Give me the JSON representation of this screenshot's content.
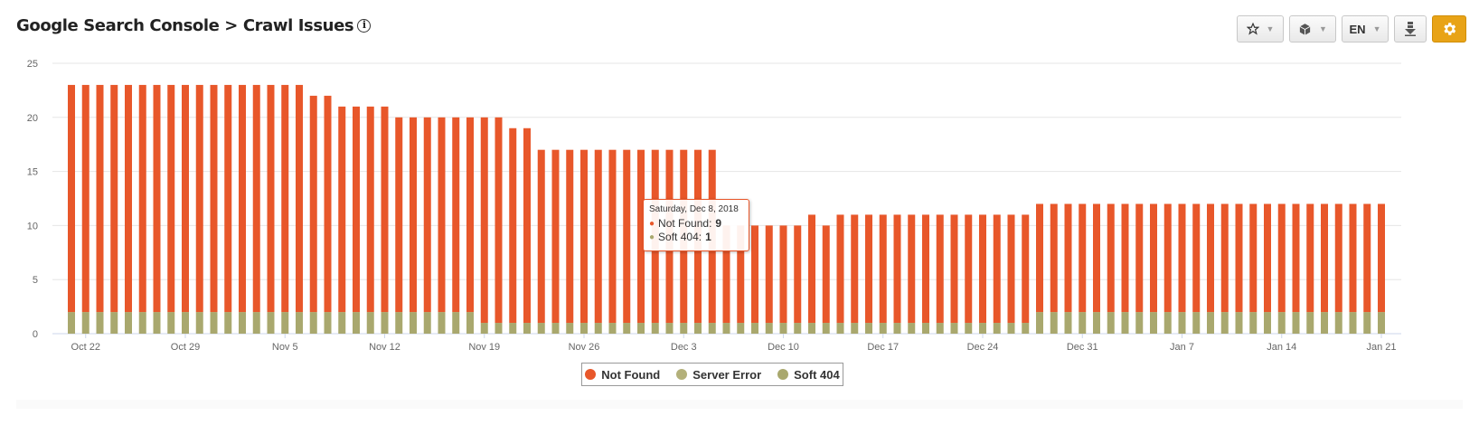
{
  "header": {
    "title": "Google Search Console > Crawl Issues",
    "info_icon": "i"
  },
  "toolbar": {
    "star_icon": "star-icon",
    "cube_icon": "cube-icon",
    "language": "EN",
    "download_icon": "download-icon",
    "settings_icon": "gear-icon",
    "caret": "▼"
  },
  "colors": {
    "not_found": "#e8572a",
    "server_error": "#b3b07a",
    "soft_404": "#a9a86e",
    "settings_accent": "#e8a317"
  },
  "tooltip": {
    "date": "Saturday, Dec 8, 2018",
    "not_found_label": "Not Found:",
    "not_found_value": "9",
    "soft404_label": "Soft 404:",
    "soft404_value": "1"
  },
  "chart_data": {
    "type": "bar",
    "stacked": true,
    "ylim": [
      0,
      25
    ],
    "yticks": [
      "0",
      "5",
      "10",
      "15",
      "20",
      "25"
    ],
    "xtick_labels": [
      "Oct 22",
      "Oct 29",
      "Nov 5",
      "Nov 12",
      "Nov 19",
      "Nov 26",
      "Dec 3",
      "Dec 10",
      "Dec 17",
      "Dec 24",
      "Dec 31",
      "Jan 7",
      "Jan 14",
      "Jan 21"
    ],
    "legend_position": "bottom-center",
    "grid": true,
    "series": [
      {
        "name": "Not Found",
        "values": [
          21,
          21,
          21,
          21,
          21,
          21,
          21,
          21,
          21,
          21,
          21,
          21,
          21,
          21,
          21,
          21,
          21,
          20,
          20,
          19,
          19,
          19,
          19,
          18,
          18,
          18,
          18,
          18,
          18,
          19,
          19,
          18,
          18,
          16,
          16,
          16,
          16,
          16,
          16,
          16,
          16,
          16,
          16,
          16,
          16,
          16,
          9,
          9,
          9,
          9,
          9,
          9,
          10,
          9,
          10,
          10,
          10,
          10,
          10,
          10,
          10,
          10,
          10,
          10,
          10,
          10,
          10,
          10,
          10,
          10,
          10,
          10,
          10,
          10,
          10,
          10,
          10,
          10,
          10,
          10,
          10,
          10,
          10,
          10,
          10,
          10,
          10,
          10,
          10,
          10,
          10,
          10,
          10
        ]
      },
      {
        "name": "Server Error",
        "values": [
          0,
          0,
          0,
          0,
          0,
          0,
          0,
          0,
          0,
          0,
          0,
          0,
          0,
          0,
          0,
          0,
          0,
          0,
          0,
          0,
          0,
          0,
          0,
          0,
          0,
          0,
          0,
          0,
          0,
          0,
          0,
          0,
          0,
          0,
          0,
          0,
          0,
          0,
          0,
          0,
          0,
          0,
          0,
          0,
          0,
          0,
          0,
          0,
          0,
          0,
          0,
          0,
          0,
          0,
          0,
          0,
          0,
          0,
          0,
          0,
          0,
          0,
          0,
          0,
          0,
          0,
          0,
          0,
          0,
          0,
          0,
          0,
          0,
          0,
          0,
          0,
          0,
          0,
          0,
          0,
          0,
          0,
          0,
          0,
          0,
          0,
          0,
          0,
          0,
          0,
          0,
          0,
          0
        ]
      },
      {
        "name": "Soft 404",
        "values": [
          2,
          2,
          2,
          2,
          2,
          2,
          2,
          2,
          2,
          2,
          2,
          2,
          2,
          2,
          2,
          2,
          2,
          2,
          2,
          2,
          2,
          2,
          2,
          2,
          2,
          2,
          2,
          2,
          2,
          1,
          1,
          1,
          1,
          1,
          1,
          1,
          1,
          1,
          1,
          1,
          1,
          1,
          1,
          1,
          1,
          1,
          1,
          1,
          1,
          1,
          1,
          1,
          1,
          1,
          1,
          1,
          1,
          1,
          1,
          1,
          1,
          1,
          1,
          1,
          1,
          1,
          1,
          1,
          2,
          2,
          2,
          2,
          2,
          2,
          2,
          2,
          2,
          2,
          2,
          2,
          2,
          2,
          2,
          2,
          2,
          2,
          2,
          2,
          2,
          2,
          2,
          2,
          2
        ]
      }
    ]
  }
}
